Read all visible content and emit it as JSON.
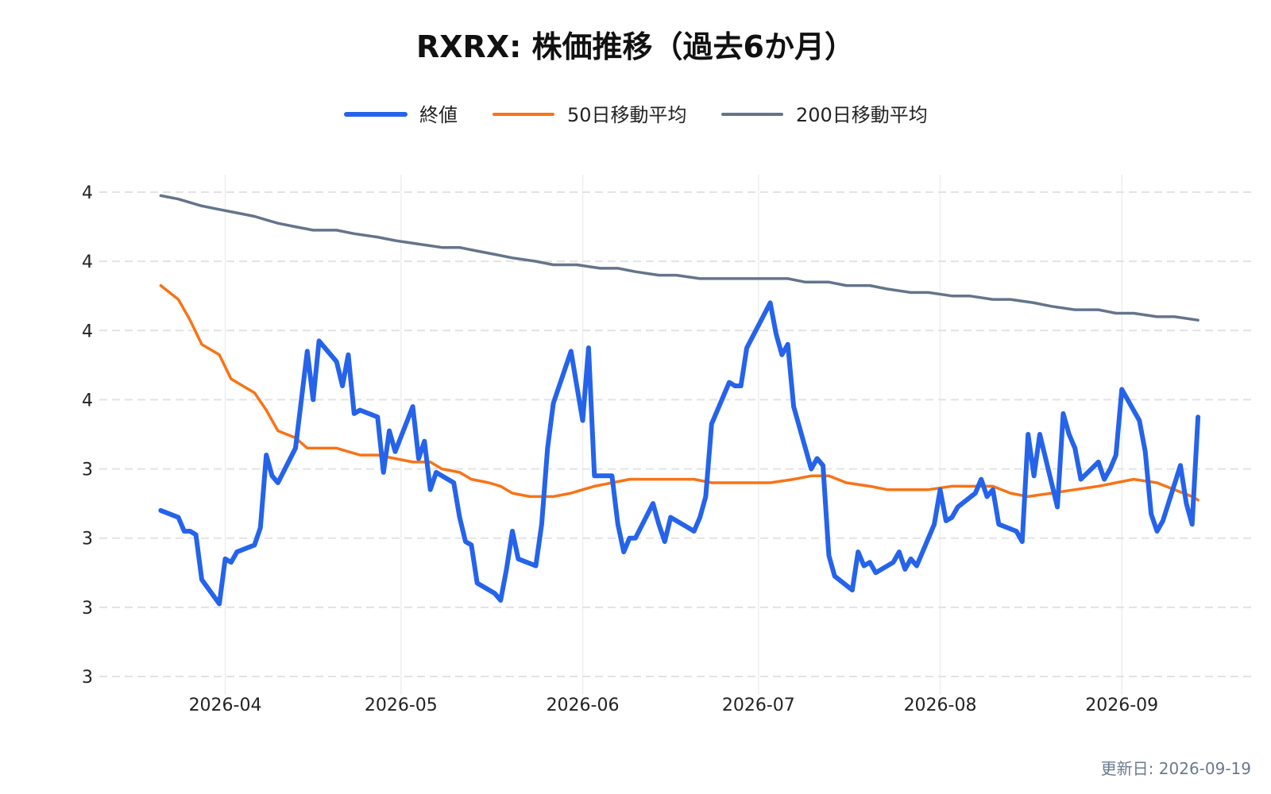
{
  "chart_data": {
    "type": "line",
    "title": "RXRX: 株価推移（過去6か月）",
    "xlabel": "",
    "ylabel": "",
    "footer": "更新日: 2026-09-19",
    "y_tick_labels": [
      "3",
      "3",
      "3",
      "3",
      "4",
      "4",
      "4",
      "4"
    ],
    "ylim": [
      2.6,
      4.0
    ],
    "xlim": [
      "2026-03-20",
      "2026-09-19"
    ],
    "x_ticks": [
      "2026-04-01",
      "2026-05-01",
      "2026-06-01",
      "2026-07-01",
      "2026-08-01",
      "2026-09-01"
    ],
    "x_tick_labels": [
      "2026-04",
      "2026-05",
      "2026-06",
      "2026-07",
      "2026-08",
      "2026-09"
    ],
    "grid": true,
    "legend_position": "top",
    "series": [
      {
        "name": "終値",
        "color": "#2563eb",
        "points": [
          [
            "2026-03-21",
            3.08
          ],
          [
            "2026-03-24",
            3.06
          ],
          [
            "2026-03-25",
            3.02
          ],
          [
            "2026-03-26",
            3.02
          ],
          [
            "2026-03-27",
            3.01
          ],
          [
            "2026-03-28",
            2.88
          ],
          [
            "2026-03-31",
            2.81
          ],
          [
            "2026-04-01",
            2.94
          ],
          [
            "2026-04-02",
            2.93
          ],
          [
            "2026-04-03",
            2.96
          ],
          [
            "2026-04-06",
            2.98
          ],
          [
            "2026-04-07",
            3.03
          ],
          [
            "2026-04-08",
            3.24
          ],
          [
            "2026-04-09",
            3.18
          ],
          [
            "2026-04-10",
            3.16
          ],
          [
            "2026-04-13",
            3.26
          ],
          [
            "2026-04-14",
            3.4
          ],
          [
            "2026-04-15",
            3.54
          ],
          [
            "2026-04-16",
            3.4
          ],
          [
            "2026-04-17",
            3.57
          ],
          [
            "2026-04-20",
            3.51
          ],
          [
            "2026-04-21",
            3.44
          ],
          [
            "2026-04-22",
            3.53
          ],
          [
            "2026-04-23",
            3.36
          ],
          [
            "2026-04-24",
            3.37
          ],
          [
            "2026-04-27",
            3.35
          ],
          [
            "2026-04-28",
            3.19
          ],
          [
            "2026-04-29",
            3.31
          ],
          [
            "2026-04-30",
            3.25
          ],
          [
            "2026-05-03",
            3.38
          ],
          [
            "2026-05-04",
            3.23
          ],
          [
            "2026-05-05",
            3.28
          ],
          [
            "2026-05-06",
            3.14
          ],
          [
            "2026-05-07",
            3.19
          ],
          [
            "2026-05-10",
            3.16
          ],
          [
            "2026-05-11",
            3.06
          ],
          [
            "2026-05-12",
            2.99
          ],
          [
            "2026-05-13",
            2.98
          ],
          [
            "2026-05-14",
            2.87
          ],
          [
            "2026-05-17",
            2.84
          ],
          [
            "2026-05-18",
            2.82
          ],
          [
            "2026-05-19",
            2.91
          ],
          [
            "2026-05-20",
            3.02
          ],
          [
            "2026-05-21",
            2.94
          ],
          [
            "2026-05-24",
            2.92
          ],
          [
            "2026-05-25",
            3.04
          ],
          [
            "2026-05-26",
            3.26
          ],
          [
            "2026-05-27",
            3.39
          ],
          [
            "2026-05-30",
            3.54
          ],
          [
            "2026-05-31",
            3.44
          ],
          [
            "2026-06-01",
            3.34
          ],
          [
            "2026-06-02",
            3.55
          ],
          [
            "2026-06-03",
            3.18
          ],
          [
            "2026-06-06",
            3.18
          ],
          [
            "2026-06-07",
            3.04
          ],
          [
            "2026-06-08",
            2.96
          ],
          [
            "2026-06-09",
            3.0
          ],
          [
            "2026-06-10",
            3.0
          ],
          [
            "2026-06-13",
            3.1
          ],
          [
            "2026-06-14",
            3.04
          ],
          [
            "2026-06-15",
            2.99
          ],
          [
            "2026-06-16",
            3.06
          ],
          [
            "2026-06-19",
            3.03
          ],
          [
            "2026-06-20",
            3.02
          ],
          [
            "2026-06-21",
            3.06
          ],
          [
            "2026-06-22",
            3.12
          ],
          [
            "2026-06-23",
            3.33
          ],
          [
            "2026-06-26",
            3.45
          ],
          [
            "2026-06-27",
            3.44
          ],
          [
            "2026-06-28",
            3.44
          ],
          [
            "2026-06-29",
            3.55
          ],
          [
            "2026-07-03",
            3.68
          ],
          [
            "2026-07-04",
            3.59
          ],
          [
            "2026-07-05",
            3.53
          ],
          [
            "2026-07-06",
            3.56
          ],
          [
            "2026-07-07",
            3.38
          ],
          [
            "2026-07-10",
            3.2
          ],
          [
            "2026-07-11",
            3.23
          ],
          [
            "2026-07-12",
            3.21
          ],
          [
            "2026-07-13",
            2.95
          ],
          [
            "2026-07-14",
            2.89
          ],
          [
            "2026-07-17",
            2.85
          ],
          [
            "2026-07-18",
            2.96
          ],
          [
            "2026-07-19",
            2.92
          ],
          [
            "2026-07-20",
            2.93
          ],
          [
            "2026-07-21",
            2.9
          ],
          [
            "2026-07-24",
            2.93
          ],
          [
            "2026-07-25",
            2.96
          ],
          [
            "2026-07-26",
            2.91
          ],
          [
            "2026-07-27",
            2.94
          ],
          [
            "2026-07-28",
            2.92
          ],
          [
            "2026-07-31",
            3.04
          ],
          [
            "2026-08-01",
            3.14
          ],
          [
            "2026-08-02",
            3.05
          ],
          [
            "2026-08-03",
            3.06
          ],
          [
            "2026-08-04",
            3.09
          ],
          [
            "2026-08-07",
            3.13
          ],
          [
            "2026-08-08",
            3.17
          ],
          [
            "2026-08-09",
            3.12
          ],
          [
            "2026-08-10",
            3.14
          ],
          [
            "2026-08-11",
            3.04
          ],
          [
            "2026-08-14",
            3.02
          ],
          [
            "2026-08-15",
            2.99
          ],
          [
            "2026-08-16",
            3.3
          ],
          [
            "2026-08-17",
            3.18
          ],
          [
            "2026-08-18",
            3.3
          ],
          [
            "2026-08-21",
            3.09
          ],
          [
            "2026-08-22",
            3.36
          ],
          [
            "2026-08-23",
            3.3
          ],
          [
            "2026-08-24",
            3.26
          ],
          [
            "2026-08-25",
            3.17
          ],
          [
            "2026-08-28",
            3.22
          ],
          [
            "2026-08-29",
            3.17
          ],
          [
            "2026-08-30",
            3.2
          ],
          [
            "2026-08-31",
            3.24
          ],
          [
            "2026-09-01",
            3.43
          ],
          [
            "2026-09-04",
            3.34
          ],
          [
            "2026-09-05",
            3.25
          ],
          [
            "2026-09-06",
            3.07
          ],
          [
            "2026-09-07",
            3.02
          ],
          [
            "2026-09-08",
            3.05
          ],
          [
            "2026-09-11",
            3.21
          ],
          [
            "2026-09-12",
            3.1
          ],
          [
            "2026-09-13",
            3.04
          ],
          [
            "2026-09-14",
            3.35
          ]
        ]
      },
      {
        "name": "50日移動平均",
        "color": "#f97316",
        "points": [
          [
            "2026-03-21",
            3.73
          ],
          [
            "2026-03-24",
            3.69
          ],
          [
            "2026-03-26",
            3.63
          ],
          [
            "2026-03-28",
            3.56
          ],
          [
            "2026-03-31",
            3.53
          ],
          [
            "2026-04-02",
            3.46
          ],
          [
            "2026-04-06",
            3.42
          ],
          [
            "2026-04-08",
            3.37
          ],
          [
            "2026-04-10",
            3.31
          ],
          [
            "2026-04-13",
            3.29
          ],
          [
            "2026-04-15",
            3.26
          ],
          [
            "2026-04-17",
            3.26
          ],
          [
            "2026-04-20",
            3.26
          ],
          [
            "2026-04-22",
            3.25
          ],
          [
            "2026-04-24",
            3.24
          ],
          [
            "2026-04-27",
            3.24
          ],
          [
            "2026-04-30",
            3.23
          ],
          [
            "2026-05-03",
            3.22
          ],
          [
            "2026-05-06",
            3.22
          ],
          [
            "2026-05-08",
            3.2
          ],
          [
            "2026-05-11",
            3.19
          ],
          [
            "2026-05-13",
            3.17
          ],
          [
            "2026-05-16",
            3.16
          ],
          [
            "2026-05-18",
            3.15
          ],
          [
            "2026-05-20",
            3.13
          ],
          [
            "2026-05-23",
            3.12
          ],
          [
            "2026-05-25",
            3.12
          ],
          [
            "2026-05-27",
            3.12
          ],
          [
            "2026-05-30",
            3.13
          ],
          [
            "2026-06-01",
            3.14
          ],
          [
            "2026-06-03",
            3.15
          ],
          [
            "2026-06-06",
            3.16
          ],
          [
            "2026-06-09",
            3.17
          ],
          [
            "2026-06-13",
            3.17
          ],
          [
            "2026-06-16",
            3.17
          ],
          [
            "2026-06-20",
            3.17
          ],
          [
            "2026-06-23",
            3.16
          ],
          [
            "2026-06-27",
            3.16
          ],
          [
            "2026-06-30",
            3.16
          ],
          [
            "2026-07-03",
            3.16
          ],
          [
            "2026-07-07",
            3.17
          ],
          [
            "2026-07-10",
            3.18
          ],
          [
            "2026-07-13",
            3.18
          ],
          [
            "2026-07-16",
            3.16
          ],
          [
            "2026-07-20",
            3.15
          ],
          [
            "2026-07-23",
            3.14
          ],
          [
            "2026-07-27",
            3.14
          ],
          [
            "2026-07-30",
            3.14
          ],
          [
            "2026-08-03",
            3.15
          ],
          [
            "2026-08-06",
            3.15
          ],
          [
            "2026-08-10",
            3.15
          ],
          [
            "2026-08-13",
            3.13
          ],
          [
            "2026-08-16",
            3.12
          ],
          [
            "2026-08-20",
            3.13
          ],
          [
            "2026-08-24",
            3.14
          ],
          [
            "2026-08-28",
            3.15
          ],
          [
            "2026-08-31",
            3.16
          ],
          [
            "2026-09-03",
            3.17
          ],
          [
            "2026-09-07",
            3.16
          ],
          [
            "2026-09-10",
            3.14
          ],
          [
            "2026-09-13",
            3.12
          ],
          [
            "2026-09-14",
            3.11
          ]
        ]
      },
      {
        "name": "200日移動平均",
        "color": "#64748b",
        "points": [
          [
            "2026-03-21",
            3.99
          ],
          [
            "2026-03-24",
            3.98
          ],
          [
            "2026-03-26",
            3.97
          ],
          [
            "2026-03-28",
            3.96
          ],
          [
            "2026-03-31",
            3.95
          ],
          [
            "2026-04-03",
            3.94
          ],
          [
            "2026-04-06",
            3.93
          ],
          [
            "2026-04-08",
            3.92
          ],
          [
            "2026-04-10",
            3.91
          ],
          [
            "2026-04-13",
            3.9
          ],
          [
            "2026-04-16",
            3.89
          ],
          [
            "2026-04-20",
            3.89
          ],
          [
            "2026-04-23",
            3.88
          ],
          [
            "2026-04-27",
            3.87
          ],
          [
            "2026-04-30",
            3.86
          ],
          [
            "2026-05-04",
            3.85
          ],
          [
            "2026-05-08",
            3.84
          ],
          [
            "2026-05-11",
            3.84
          ],
          [
            "2026-05-14",
            3.83
          ],
          [
            "2026-05-17",
            3.82
          ],
          [
            "2026-05-20",
            3.81
          ],
          [
            "2026-05-24",
            3.8
          ],
          [
            "2026-05-27",
            3.79
          ],
          [
            "2026-05-31",
            3.79
          ],
          [
            "2026-06-04",
            3.78
          ],
          [
            "2026-06-07",
            3.78
          ],
          [
            "2026-06-10",
            3.77
          ],
          [
            "2026-06-14",
            3.76
          ],
          [
            "2026-06-17",
            3.76
          ],
          [
            "2026-06-21",
            3.75
          ],
          [
            "2026-06-25",
            3.75
          ],
          [
            "2026-06-29",
            3.75
          ],
          [
            "2026-07-02",
            3.75
          ],
          [
            "2026-07-06",
            3.75
          ],
          [
            "2026-07-09",
            3.74
          ],
          [
            "2026-07-13",
            3.74
          ],
          [
            "2026-07-16",
            3.73
          ],
          [
            "2026-07-20",
            3.73
          ],
          [
            "2026-07-23",
            3.72
          ],
          [
            "2026-07-27",
            3.71
          ],
          [
            "2026-07-30",
            3.71
          ],
          [
            "2026-08-03",
            3.7
          ],
          [
            "2026-08-06",
            3.7
          ],
          [
            "2026-08-10",
            3.69
          ],
          [
            "2026-08-13",
            3.69
          ],
          [
            "2026-08-17",
            3.68
          ],
          [
            "2026-08-20",
            3.67
          ],
          [
            "2026-08-24",
            3.66
          ],
          [
            "2026-08-28",
            3.66
          ],
          [
            "2026-08-31",
            3.65
          ],
          [
            "2026-09-03",
            3.65
          ],
          [
            "2026-09-07",
            3.64
          ],
          [
            "2026-09-10",
            3.64
          ],
          [
            "2026-09-14",
            3.63
          ]
        ]
      }
    ]
  }
}
